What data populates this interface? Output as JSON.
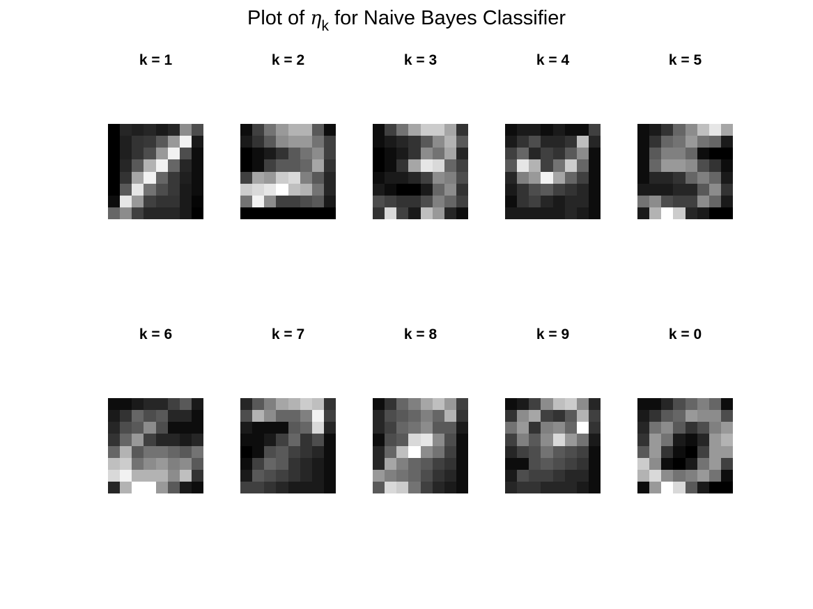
{
  "title": {
    "prefix": "Plot of ",
    "symbol": "η",
    "subscript": "k",
    "suffix": " for Naive Bayes Classifier"
  },
  "chart_data": {
    "type": "heatmap",
    "colormap": "gray",
    "value_range": [
      0,
      1
    ],
    "grid_size": [
      8,
      8
    ],
    "panels": [
      {
        "label": "k = 1",
        "values": [
          [
            0.0,
            0.15,
            0.12,
            0.15,
            0.1,
            0.15,
            0.55,
            0.3
          ],
          [
            0.0,
            0.12,
            0.2,
            0.22,
            0.35,
            0.6,
            0.95,
            0.1
          ],
          [
            0.0,
            0.12,
            0.2,
            0.3,
            0.6,
            0.95,
            0.3,
            0.05
          ],
          [
            0.0,
            0.15,
            0.35,
            0.7,
            0.95,
            0.4,
            0.15,
            0.05
          ],
          [
            0.0,
            0.2,
            0.65,
            0.95,
            0.4,
            0.22,
            0.12,
            0.05
          ],
          [
            0.0,
            0.35,
            0.9,
            0.45,
            0.3,
            0.22,
            0.1,
            0.05
          ],
          [
            0.05,
            0.9,
            0.6,
            0.25,
            0.2,
            0.2,
            0.1,
            0.02
          ],
          [
            0.4,
            0.55,
            0.25,
            0.15,
            0.15,
            0.15,
            0.1,
            0.0
          ]
        ]
      },
      {
        "label": "k = 2",
        "values": [
          [
            0.05,
            0.25,
            0.45,
            0.6,
            0.7,
            0.7,
            0.35,
            0.05
          ],
          [
            0.1,
            0.2,
            0.35,
            0.55,
            0.6,
            0.6,
            0.45,
            0.25
          ],
          [
            0.0,
            0.05,
            0.1,
            0.2,
            0.35,
            0.45,
            0.55,
            0.25
          ],
          [
            0.0,
            0.05,
            0.25,
            0.35,
            0.35,
            0.4,
            0.65,
            0.2
          ],
          [
            0.25,
            0.65,
            0.6,
            0.8,
            0.85,
            0.5,
            0.35,
            0.15
          ],
          [
            0.8,
            0.85,
            0.9,
            1.0,
            0.75,
            0.7,
            0.45,
            0.15
          ],
          [
            0.45,
            0.95,
            0.55,
            0.25,
            0.25,
            0.3,
            0.35,
            0.1
          ],
          [
            0.0,
            0.0,
            0.0,
            0.0,
            0.0,
            0.0,
            0.0,
            0.0
          ]
        ]
      },
      {
        "label": "k = 3",
        "values": [
          [
            0.05,
            0.25,
            0.45,
            0.65,
            0.8,
            0.8,
            0.65,
            0.2
          ],
          [
            0.05,
            0.1,
            0.15,
            0.2,
            0.35,
            0.55,
            0.7,
            0.35
          ],
          [
            0.0,
            0.05,
            0.1,
            0.2,
            0.55,
            0.45,
            0.65,
            0.15
          ],
          [
            0.0,
            0.05,
            0.2,
            0.65,
            0.9,
            0.85,
            0.4,
            0.25
          ],
          [
            0.05,
            0.1,
            0.1,
            0.15,
            0.25,
            0.55,
            0.5,
            0.3
          ],
          [
            0.1,
            0.05,
            0.0,
            0.0,
            0.1,
            0.4,
            0.55,
            0.2
          ],
          [
            0.3,
            0.25,
            0.2,
            0.2,
            0.3,
            0.5,
            0.4,
            0.25
          ],
          [
            0.2,
            0.85,
            0.25,
            0.1,
            0.75,
            0.6,
            0.15,
            0.05
          ]
        ]
      },
      {
        "label": "k = 4",
        "values": [
          [
            0.05,
            0.1,
            0.1,
            0.05,
            0.1,
            0.05,
            0.05,
            0.25
          ],
          [
            0.1,
            0.2,
            0.3,
            0.15,
            0.15,
            0.2,
            0.75,
            0.15
          ],
          [
            0.25,
            0.4,
            0.15,
            0.25,
            0.2,
            0.35,
            0.55,
            0.05
          ],
          [
            0.35,
            0.9,
            0.7,
            0.25,
            0.45,
            0.8,
            0.4,
            0.05
          ],
          [
            0.15,
            0.5,
            0.6,
            0.95,
            0.65,
            0.4,
            0.25,
            0.05
          ],
          [
            0.1,
            0.2,
            0.3,
            0.35,
            0.25,
            0.2,
            0.15,
            0.05
          ],
          [
            0.05,
            0.2,
            0.25,
            0.15,
            0.1,
            0.15,
            0.15,
            0.05
          ],
          [
            0.1,
            0.1,
            0.1,
            0.1,
            0.1,
            0.15,
            0.1,
            0.05
          ]
        ]
      },
      {
        "label": "k = 5",
        "values": [
          [
            0.05,
            0.1,
            0.2,
            0.4,
            0.55,
            0.75,
            0.9,
            0.65
          ],
          [
            0.05,
            0.2,
            0.4,
            0.45,
            0.6,
            0.45,
            0.4,
            0.1
          ],
          [
            0.05,
            0.35,
            0.5,
            0.5,
            0.4,
            0.05,
            0.0,
            0.0
          ],
          [
            0.05,
            0.4,
            0.6,
            0.6,
            0.55,
            0.3,
            0.2,
            0.05
          ],
          [
            0.05,
            0.15,
            0.15,
            0.2,
            0.4,
            0.5,
            0.4,
            0.1
          ],
          [
            0.1,
            0.1,
            0.1,
            0.15,
            0.15,
            0.35,
            0.55,
            0.2
          ],
          [
            0.45,
            0.55,
            0.3,
            0.25,
            0.25,
            0.55,
            0.4,
            0.1
          ],
          [
            0.1,
            0.7,
            1.0,
            0.8,
            0.15,
            0.1,
            0.0,
            0.0
          ]
        ]
      },
      {
        "label": "k = 6",
        "values": [
          [
            0.05,
            0.05,
            0.1,
            0.15,
            0.15,
            0.25,
            0.35,
            0.1
          ],
          [
            0.1,
            0.2,
            0.4,
            0.3,
            0.35,
            0.15,
            0.15,
            0.05
          ],
          [
            0.15,
            0.3,
            0.35,
            0.55,
            0.3,
            0.05,
            0.05,
            0.05
          ],
          [
            0.2,
            0.4,
            0.6,
            0.25,
            0.15,
            0.15,
            0.1,
            0.15
          ],
          [
            0.4,
            0.7,
            0.35,
            0.45,
            0.45,
            0.4,
            0.35,
            0.45
          ],
          [
            0.75,
            0.8,
            0.45,
            0.55,
            0.6,
            0.5,
            0.55,
            0.35
          ],
          [
            0.85,
            0.95,
            0.7,
            0.7,
            0.7,
            0.55,
            0.75,
            0.2
          ],
          [
            0.15,
            0.7,
            1.0,
            1.0,
            0.6,
            0.35,
            0.1,
            0.05
          ]
        ]
      },
      {
        "label": "k = 7",
        "values": [
          [
            0.15,
            0.35,
            0.5,
            0.65,
            0.7,
            0.8,
            0.75,
            0.2
          ],
          [
            0.3,
            0.7,
            0.55,
            0.4,
            0.4,
            0.5,
            0.95,
            0.25
          ],
          [
            0.1,
            0.05,
            0.05,
            0.05,
            0.35,
            0.4,
            0.85,
            0.15
          ],
          [
            0.05,
            0.05,
            0.1,
            0.25,
            0.4,
            0.2,
            0.3,
            0.05
          ],
          [
            0.0,
            0.05,
            0.3,
            0.35,
            0.25,
            0.2,
            0.15,
            0.05
          ],
          [
            0.05,
            0.25,
            0.4,
            0.35,
            0.2,
            0.15,
            0.1,
            0.05
          ],
          [
            0.1,
            0.35,
            0.3,
            0.25,
            0.2,
            0.15,
            0.1,
            0.05
          ],
          [
            0.25,
            0.25,
            0.2,
            0.15,
            0.1,
            0.1,
            0.1,
            0.05
          ]
        ]
      },
      {
        "label": "k = 8",
        "values": [
          [
            0.05,
            0.2,
            0.4,
            0.5,
            0.65,
            0.75,
            0.6,
            0.25
          ],
          [
            0.15,
            0.3,
            0.35,
            0.4,
            0.5,
            0.4,
            0.7,
            0.2
          ],
          [
            0.15,
            0.25,
            0.4,
            0.45,
            0.55,
            0.35,
            0.35,
            0.1
          ],
          [
            0.05,
            0.3,
            0.35,
            0.85,
            0.9,
            0.55,
            0.3,
            0.05
          ],
          [
            0.15,
            0.4,
            0.75,
            1.0,
            0.55,
            0.45,
            0.25,
            0.05
          ],
          [
            0.15,
            0.65,
            0.5,
            0.4,
            0.35,
            0.25,
            0.2,
            0.05
          ],
          [
            0.6,
            0.5,
            0.45,
            0.4,
            0.3,
            0.2,
            0.15,
            0.05
          ],
          [
            0.35,
            0.85,
            0.8,
            0.45,
            0.25,
            0.15,
            0.1,
            0.05
          ]
        ]
      },
      {
        "label": "k = 9",
        "values": [
          [
            0.05,
            0.1,
            0.25,
            0.55,
            0.75,
            0.8,
            0.55,
            0.15
          ],
          [
            0.2,
            0.55,
            0.65,
            0.25,
            0.2,
            0.35,
            0.7,
            0.25
          ],
          [
            0.45,
            0.6,
            0.2,
            0.5,
            0.55,
            0.4,
            1.0,
            0.2
          ],
          [
            0.25,
            0.5,
            0.35,
            0.55,
            0.85,
            0.6,
            0.45,
            0.1
          ],
          [
            0.15,
            0.25,
            0.3,
            0.45,
            0.35,
            0.3,
            0.25,
            0.05
          ],
          [
            0.05,
            0.05,
            0.3,
            0.35,
            0.3,
            0.25,
            0.2,
            0.05
          ],
          [
            0.1,
            0.3,
            0.25,
            0.25,
            0.2,
            0.15,
            0.15,
            0.05
          ],
          [
            0.15,
            0.2,
            0.2,
            0.15,
            0.15,
            0.15,
            0.1,
            0.05
          ]
        ]
      },
      {
        "label": "k = 0",
        "values": [
          [
            0.05,
            0.05,
            0.15,
            0.3,
            0.4,
            0.5,
            0.4,
            0.05
          ],
          [
            0.1,
            0.2,
            0.35,
            0.4,
            0.6,
            0.55,
            0.55,
            0.3
          ],
          [
            0.15,
            0.45,
            0.55,
            0.35,
            0.2,
            0.3,
            0.5,
            0.6
          ],
          [
            0.2,
            0.6,
            0.45,
            0.1,
            0.05,
            0.15,
            0.6,
            0.7
          ],
          [
            0.35,
            0.6,
            0.2,
            0.05,
            0.0,
            0.25,
            0.6,
            0.6
          ],
          [
            0.8,
            0.55,
            0.05,
            0.0,
            0.1,
            0.45,
            0.6,
            0.25
          ],
          [
            0.7,
            0.85,
            0.55,
            0.45,
            0.5,
            0.6,
            0.45,
            0.05
          ],
          [
            0.05,
            0.6,
            1.0,
            0.85,
            0.35,
            0.1,
            0.0,
            0.0
          ]
        ]
      }
    ]
  }
}
